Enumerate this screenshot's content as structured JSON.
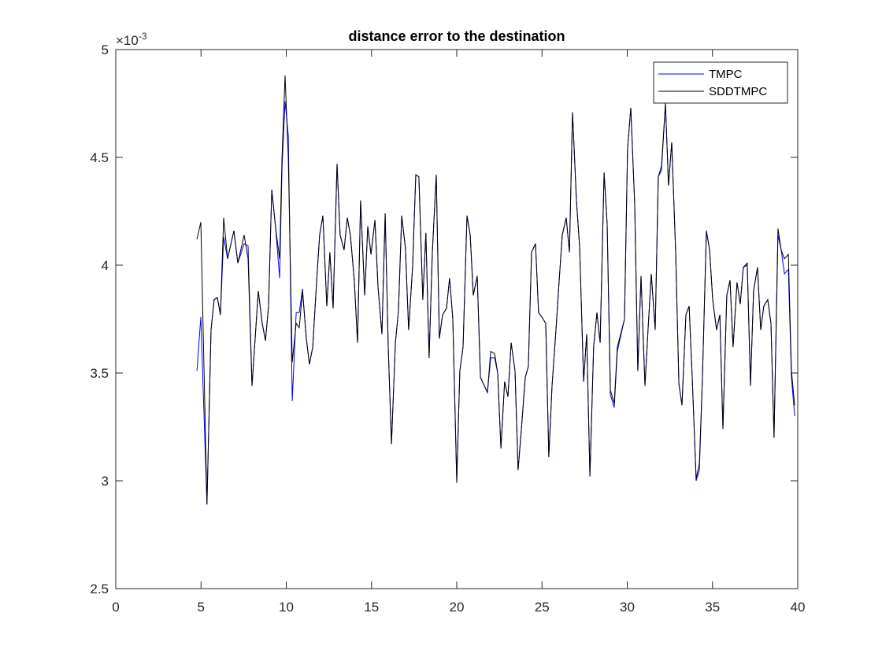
{
  "chart_data": {
    "type": "line",
    "title": "distance error to the destination",
    "y_scale_label": "×10",
    "y_scale_exponent": "-3",
    "x": [
      4.76,
      4.99,
      5.35,
      5.59,
      5.77,
      5.96,
      6.14,
      6.33,
      6.56,
      6.93,
      7.16,
      7.53,
      7.76,
      7.99,
      8.36,
      8.59,
      8.78,
      8.96,
      9.15,
      9.38,
      9.61,
      9.75,
      9.93,
      10.12,
      10.35,
      10.58,
      10.76,
      10.95,
      11.18,
      11.36,
      11.55,
      11.78,
      11.96,
      12.15,
      12.38,
      12.56,
      12.75,
      12.98,
      13.16,
      13.39,
      13.58,
      13.76,
      13.99,
      14.18,
      14.36,
      14.6,
      14.78,
      14.97,
      15.2,
      15.38,
      15.61,
      15.8,
      15.98,
      16.17,
      16.4,
      16.58,
      16.77,
      16.99,
      17.18,
      17.41,
      17.6,
      17.78,
      18.01,
      18.19,
      18.38,
      18.57,
      18.8,
      18.98,
      19.17,
      19.4,
      19.58,
      19.77,
      20.0,
      20.18,
      20.37,
      20.6,
      20.79,
      20.97,
      21.2,
      21.39,
      21.62,
      21.8,
      21.99,
      22.22,
      22.4,
      22.59,
      22.81,
      23.0,
      23.19,
      23.42,
      23.6,
      23.79,
      24.02,
      24.2,
      24.39,
      24.62,
      24.8,
      24.99,
      25.22,
      25.4,
      25.59,
      25.82,
      26.0,
      26.19,
      26.42,
      26.61,
      26.79,
      27.02,
      27.21,
      27.44,
      27.62,
      27.81,
      28.03,
      28.22,
      28.41,
      28.64,
      28.82,
      29.01,
      29.24,
      29.42,
      29.61,
      29.84,
      30.02,
      30.21,
      30.44,
      30.62,
      30.81,
      31.04,
      31.22,
      31.41,
      31.64,
      31.82,
      32.01,
      32.24,
      32.42,
      32.61,
      32.84,
      33.03,
      33.21,
      33.44,
      33.63,
      33.81,
      34.04,
      34.23,
      34.41,
      34.64,
      34.83,
      35.01,
      35.24,
      35.43,
      35.61,
      35.84,
      36.03,
      36.21,
      36.44,
      36.63,
      36.81,
      37.04,
      37.23,
      37.41,
      37.64,
      37.83,
      38.01,
      38.24,
      38.43,
      38.61,
      38.84,
      39.03,
      39.22,
      39.45,
      39.63,
      39.82
    ],
    "series": [
      {
        "name": "TMPC",
        "color": "#0000ff",
        "values": [
          3.51,
          3.76,
          2.89,
          3.7,
          3.84,
          3.85,
          3.77,
          4.13,
          4.03,
          4.16,
          4.01,
          4.1,
          4.09,
          3.44,
          3.88,
          3.73,
          3.65,
          3.81,
          4.35,
          4.17,
          3.94,
          4.45,
          4.76,
          4.6,
          3.37,
          3.78,
          3.78,
          3.89,
          3.66,
          3.54,
          3.62,
          3.92,
          4.14,
          4.23,
          3.81,
          4.06,
          3.8,
          4.47,
          4.14,
          4.07,
          4.22,
          4.14,
          3.93,
          3.64,
          4.3,
          3.86,
          4.18,
          4.05,
          4.21,
          3.9,
          3.68,
          4.24,
          3.62,
          3.17,
          3.64,
          3.79,
          4.23,
          4.08,
          3.7,
          3.99,
          4.42,
          4.41,
          3.84,
          4.15,
          3.57,
          4.06,
          4.42,
          3.66,
          3.77,
          3.8,
          3.94,
          3.75,
          3.0,
          3.51,
          3.62,
          4.23,
          4.14,
          3.86,
          3.95,
          3.48,
          3.44,
          3.41,
          3.57,
          3.57,
          3.5,
          3.15,
          3.46,
          3.39,
          3.64,
          3.51,
          3.05,
          3.24,
          3.48,
          3.53,
          4.06,
          4.1,
          3.78,
          3.76,
          3.73,
          3.11,
          3.44,
          3.7,
          3.92,
          4.14,
          4.22,
          4.06,
          4.71,
          4.3,
          4.08,
          3.46,
          3.68,
          3.02,
          3.62,
          3.78,
          3.64,
          4.43,
          4.19,
          3.4,
          3.34,
          3.6,
          3.67,
          3.75,
          4.54,
          4.73,
          4.28,
          3.51,
          3.95,
          3.44,
          3.7,
          3.96,
          3.7,
          4.41,
          4.44,
          4.75,
          4.37,
          4.57,
          4.06,
          3.45,
          3.35,
          3.77,
          3.81,
          3.48,
          3.0,
          3.05,
          3.48,
          4.16,
          4.07,
          3.84,
          3.7,
          3.77,
          3.24,
          3.86,
          3.93,
          3.62,
          3.92,
          3.82,
          3.99,
          4.0,
          3.44,
          3.88,
          3.99,
          3.7,
          3.81,
          3.84,
          3.73,
          3.2,
          4.14,
          4.07,
          3.96,
          3.98,
          3.48,
          3.3
        ]
      },
      {
        "name": "SDDTMPC",
        "color": "#000000",
        "values": [
          4.12,
          4.2,
          2.89,
          3.7,
          3.84,
          3.85,
          3.77,
          4.22,
          4.03,
          4.16,
          4.01,
          4.14,
          4.03,
          3.44,
          3.88,
          3.73,
          3.65,
          3.81,
          4.35,
          4.17,
          4.03,
          4.5,
          4.88,
          4.5,
          3.55,
          3.73,
          3.71,
          3.88,
          3.66,
          3.54,
          3.62,
          3.92,
          4.14,
          4.23,
          3.81,
          4.06,
          3.8,
          4.47,
          4.14,
          4.07,
          4.22,
          4.14,
          3.93,
          3.64,
          4.3,
          3.86,
          4.18,
          4.05,
          4.21,
          3.9,
          3.68,
          4.24,
          3.62,
          3.17,
          3.64,
          3.79,
          4.23,
          4.08,
          3.7,
          3.99,
          4.42,
          4.41,
          3.84,
          4.15,
          3.57,
          4.06,
          4.42,
          3.66,
          3.77,
          3.8,
          3.94,
          3.75,
          2.99,
          3.51,
          3.62,
          4.23,
          4.14,
          3.86,
          3.95,
          3.48,
          3.44,
          3.41,
          3.6,
          3.59,
          3.5,
          3.15,
          3.46,
          3.39,
          3.64,
          3.51,
          3.05,
          3.24,
          3.48,
          3.53,
          4.06,
          4.1,
          3.78,
          3.76,
          3.73,
          3.11,
          3.44,
          3.7,
          3.92,
          4.14,
          4.22,
          4.06,
          4.71,
          4.3,
          4.08,
          3.46,
          3.68,
          3.02,
          3.62,
          3.78,
          3.64,
          4.43,
          4.19,
          3.42,
          3.36,
          3.62,
          3.68,
          3.75,
          4.54,
          4.73,
          4.28,
          3.51,
          3.95,
          3.44,
          3.7,
          3.96,
          3.7,
          4.41,
          4.46,
          4.75,
          4.37,
          4.57,
          4.06,
          3.45,
          3.35,
          3.77,
          3.81,
          3.48,
          3.01,
          3.08,
          3.48,
          4.16,
          4.07,
          3.84,
          3.7,
          3.77,
          3.24,
          3.86,
          3.93,
          3.62,
          3.92,
          3.82,
          3.99,
          4.01,
          3.44,
          3.88,
          3.99,
          3.7,
          3.81,
          3.84,
          3.73,
          3.2,
          4.17,
          4.07,
          4.03,
          4.05,
          3.51,
          3.35
        ]
      }
    ],
    "xlim": [
      0,
      40
    ],
    "xticks": [
      0,
      5,
      10,
      15,
      20,
      25,
      30,
      35,
      40
    ],
    "ylim": [
      2.5,
      5
    ],
    "yticks": [
      2.5,
      3,
      3.5,
      4,
      4.5,
      5
    ],
    "legend": "northeast"
  }
}
